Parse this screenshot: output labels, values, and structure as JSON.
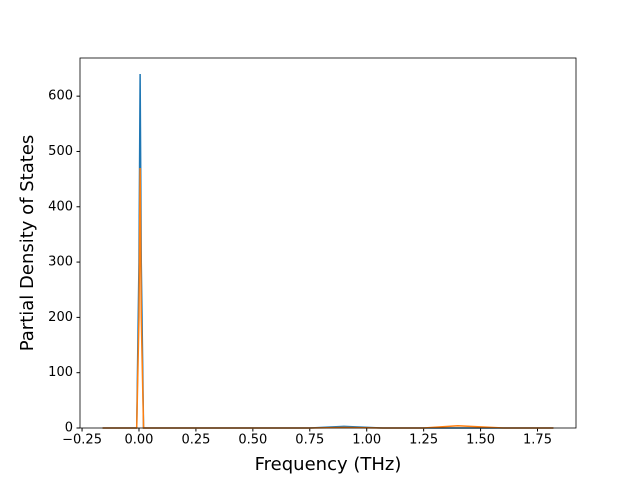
{
  "chart_data": {
    "type": "line",
    "xlabel": "Frequency (THz)",
    "ylabel": "Partial Density of States",
    "x": [
      -0.16,
      -0.01,
      0.0,
      0.005,
      0.01,
      0.02,
      0.5,
      0.75,
      0.9,
      1.07,
      1.25,
      1.4,
      1.6,
      1.82
    ],
    "series": [
      {
        "color": "#1f77b4",
        "values": [
          0,
          0,
          300,
          640,
          300,
          0,
          0,
          0,
          3,
          0,
          0,
          0,
          0,
          0
        ]
      },
      {
        "color": "#ff7f0e",
        "values": [
          0,
          0,
          200,
          470,
          200,
          0,
          0,
          0,
          1,
          0,
          0,
          4,
          0,
          0
        ]
      }
    ],
    "xlim": [
      -0.259,
      1.919
    ],
    "xticks": [
      {
        "value": -0.25,
        "label": "−0.25"
      },
      {
        "value": 0,
        "label": "0.00"
      },
      {
        "value": 0.25,
        "label": "0.25"
      },
      {
        "value": 0.5,
        "label": "0.50"
      },
      {
        "value": 0.75,
        "label": "0.75"
      },
      {
        "value": 1,
        "label": "1.00"
      },
      {
        "value": 1.25,
        "label": "1.25"
      },
      {
        "value": 1.5,
        "label": "1.50"
      },
      {
        "value": 1.75,
        "label": "1.75"
      }
    ],
    "ylim": [
      0,
      669
    ],
    "yticks": [
      0,
      100,
      200,
      300,
      400,
      500,
      600
    ],
    "grid": false
  }
}
